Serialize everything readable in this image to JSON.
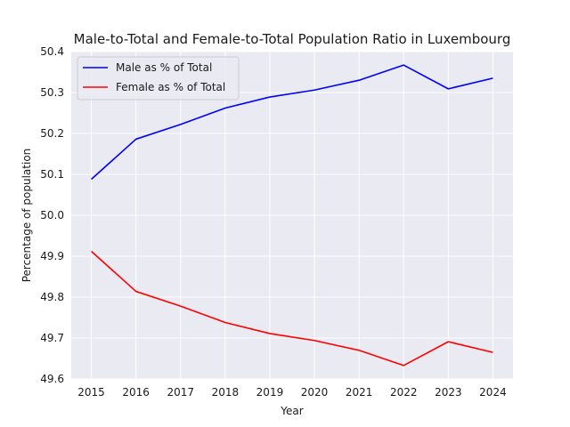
{
  "chart_data": {
    "type": "line",
    "title": "Male-to-Total and Female-to-Total Population Ratio in Luxembourg",
    "xlabel": "Year",
    "ylabel": "Percentage of population",
    "x": [
      2015,
      2016,
      2017,
      2018,
      2019,
      2020,
      2021,
      2022,
      2023,
      2024
    ],
    "xlim": [
      2014.55,
      2024.45
    ],
    "ylim": [
      49.6,
      50.4
    ],
    "yticks": [
      "49.6",
      "49.7",
      "49.8",
      "49.9",
      "50.0",
      "50.1",
      "50.2",
      "50.3",
      "50.4"
    ],
    "grid": true,
    "legend_position": "upper-left",
    "series": [
      {
        "name": "Male as % of Total",
        "color": "#0000ff",
        "values": [
          50.088,
          50.186,
          50.222,
          50.262,
          50.289,
          50.306,
          50.33,
          50.367,
          50.309,
          50.335
        ]
      },
      {
        "name": "Female as % of Total",
        "color": "#ff0000",
        "values": [
          49.912,
          49.814,
          49.778,
          49.738,
          49.711,
          49.694,
          49.67,
          49.633,
          49.691,
          49.665
        ]
      }
    ]
  }
}
